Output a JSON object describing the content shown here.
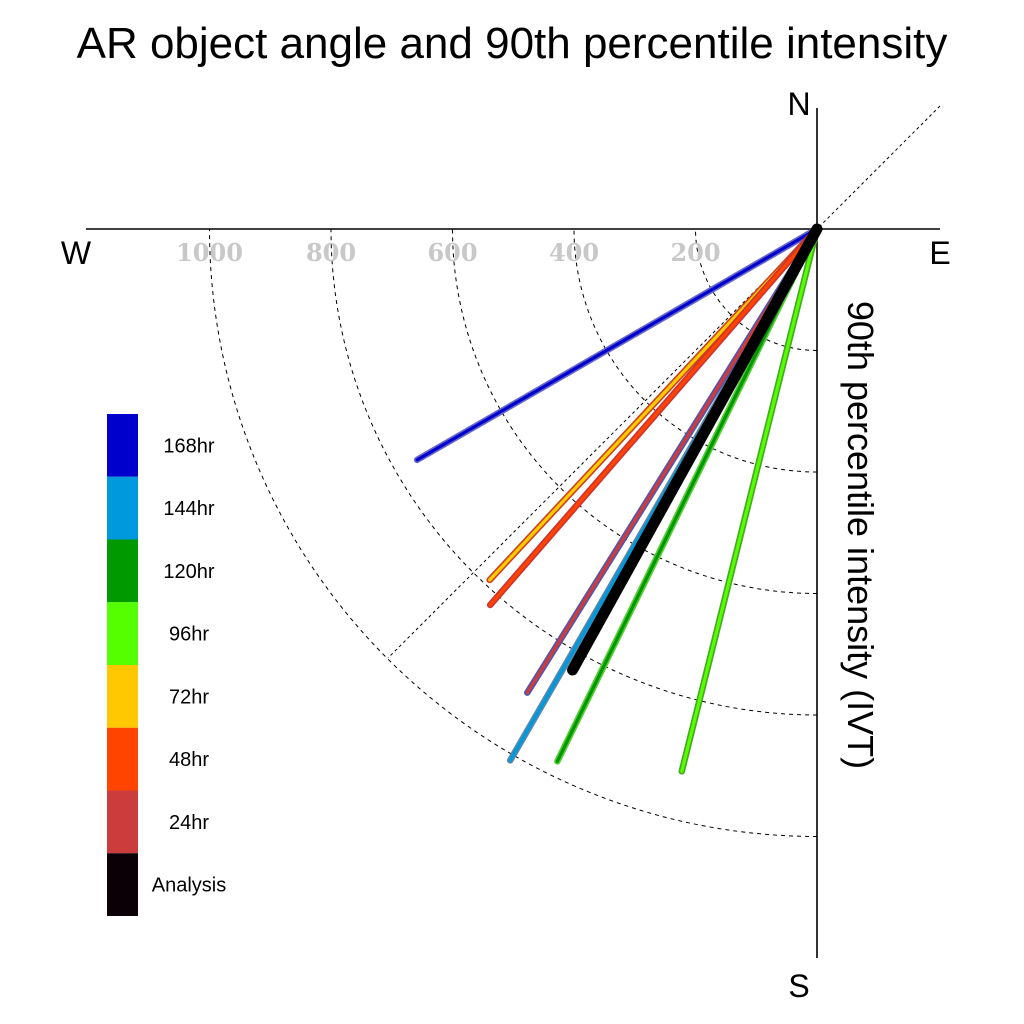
{
  "chart_data": {
    "type": "polar-vector",
    "title": "AR object angle and 90th percentile intensity",
    "ylabel": "90th percentile intensity (IVT)",
    "compass": {
      "north": "N",
      "south": "S",
      "east": "E",
      "west": "W"
    },
    "radial_ticks": [
      200,
      400,
      600,
      800,
      1000
    ],
    "radial_tick_labels": [
      "200",
      "400",
      "600",
      "800",
      "1000"
    ],
    "rmax": 1200,
    "series": [
      {
        "name": "Analysis",
        "color": "#000000",
        "outline": "#000000",
        "magnitude": 830,
        "bearing_deg": 209
      },
      {
        "name": "24hr",
        "color": "#cc3c3c",
        "outline": "#5555aa",
        "magnitude": 900,
        "bearing_deg": 212
      },
      {
        "name": "48hr",
        "color": "#ff4400",
        "outline": "#cc3333",
        "magnitude": 820,
        "bearing_deg": 221
      },
      {
        "name": "72hr",
        "color": "#ffcc00",
        "outline": "#cc4422",
        "magnitude": 790,
        "bearing_deg": 223
      },
      {
        "name": "96hr",
        "color": "#55ff00",
        "outline": "#44aa22",
        "magnitude": 920,
        "bearing_deg": 194
      },
      {
        "name": "120hr",
        "color": "#009900",
        "outline": "#55cc33",
        "magnitude": 975,
        "bearing_deg": 206
      },
      {
        "name": "144hr",
        "color": "#0099dd",
        "outline": "#5588aa",
        "magnitude": 1010,
        "bearing_deg": 210
      },
      {
        "name": "168hr",
        "color": "#0000cc",
        "outline": "#6666cc",
        "magnitude": 760,
        "bearing_deg": 240
      }
    ],
    "legend": {
      "order": [
        "168hr",
        "144hr",
        "120hr",
        "96hr",
        "72hr",
        "48hr",
        "24hr",
        "Analysis"
      ],
      "colors": [
        "#0000cc",
        "#0099dd",
        "#009900",
        "#55ff00",
        "#ffc800",
        "#ff4400",
        "#cc3c3c",
        "#0a0006"
      ],
      "placement": "left"
    },
    "grid": true
  }
}
